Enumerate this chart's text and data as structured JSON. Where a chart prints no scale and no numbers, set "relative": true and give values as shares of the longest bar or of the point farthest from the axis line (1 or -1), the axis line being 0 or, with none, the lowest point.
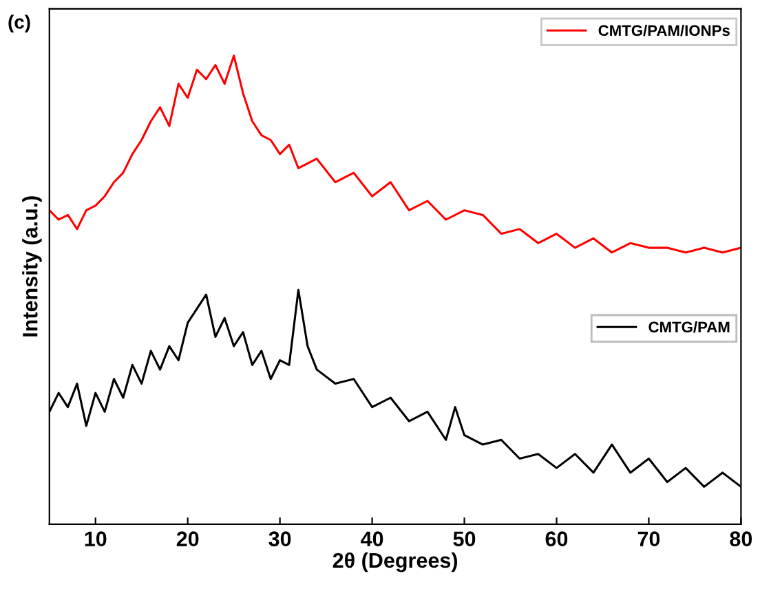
{
  "chart_data": {
    "type": "line",
    "title": "(c)",
    "xlabel": "2θ (Degrees)",
    "ylabel": "Intensity (a.u.)",
    "relative": true,
    "xlim": [
      5,
      80
    ],
    "xticks": [
      10,
      20,
      30,
      40,
      50,
      60,
      70,
      80
    ],
    "tick_labels": "x",
    "legend": "right",
    "grid": false,
    "marker": "none",
    "line_style": "solid",
    "series": [
      {
        "name": "CMTG/PAM/IONPs",
        "color": "#ff0000",
        "x": [
          5,
          6,
          7,
          8,
          9,
          10,
          11,
          12,
          13,
          14,
          15,
          16,
          17,
          18,
          19,
          20,
          21,
          22,
          23,
          24,
          25,
          26,
          27,
          28,
          29,
          30,
          31,
          32,
          34,
          36,
          38,
          40,
          42,
          44,
          46,
          48,
          50,
          52,
          54,
          56,
          58,
          60,
          62,
          64,
          66,
          68,
          70,
          72,
          74,
          76,
          78,
          80
        ],
        "values": [
          0.67,
          0.65,
          0.66,
          0.63,
          0.67,
          0.68,
          0.7,
          0.73,
          0.75,
          0.79,
          0.82,
          0.86,
          0.89,
          0.85,
          0.94,
          0.91,
          0.97,
          0.95,
          0.98,
          0.94,
          1.0,
          0.92,
          0.86,
          0.83,
          0.82,
          0.79,
          0.81,
          0.76,
          0.78,
          0.73,
          0.75,
          0.7,
          0.73,
          0.67,
          0.69,
          0.65,
          0.67,
          0.66,
          0.62,
          0.63,
          0.6,
          0.62,
          0.59,
          0.61,
          0.58,
          0.6,
          0.59,
          0.59,
          0.58,
          0.59,
          0.58,
          0.59
        ]
      },
      {
        "name": "CMTG/PAM",
        "color": "#000000",
        "x": [
          5,
          6,
          7,
          8,
          9,
          10,
          11,
          12,
          13,
          14,
          15,
          16,
          17,
          18,
          19,
          20,
          21,
          22,
          23,
          24,
          25,
          26,
          27,
          28,
          29,
          30,
          31,
          32,
          33,
          34,
          36,
          38,
          40,
          42,
          44,
          46,
          48,
          49,
          50,
          52,
          54,
          56,
          58,
          60,
          62,
          64,
          66,
          68,
          70,
          72,
          74,
          76,
          78,
          80
        ],
        "values": [
          0.24,
          0.28,
          0.25,
          0.3,
          0.21,
          0.28,
          0.24,
          0.31,
          0.27,
          0.34,
          0.3,
          0.37,
          0.33,
          0.38,
          0.35,
          0.43,
          0.46,
          0.49,
          0.4,
          0.44,
          0.38,
          0.41,
          0.34,
          0.37,
          0.31,
          0.35,
          0.34,
          0.5,
          0.38,
          0.33,
          0.3,
          0.31,
          0.25,
          0.27,
          0.22,
          0.24,
          0.18,
          0.25,
          0.19,
          0.17,
          0.18,
          0.14,
          0.15,
          0.12,
          0.15,
          0.11,
          0.17,
          0.11,
          0.14,
          0.09,
          0.12,
          0.08,
          0.11,
          0.08
        ]
      }
    ]
  }
}
